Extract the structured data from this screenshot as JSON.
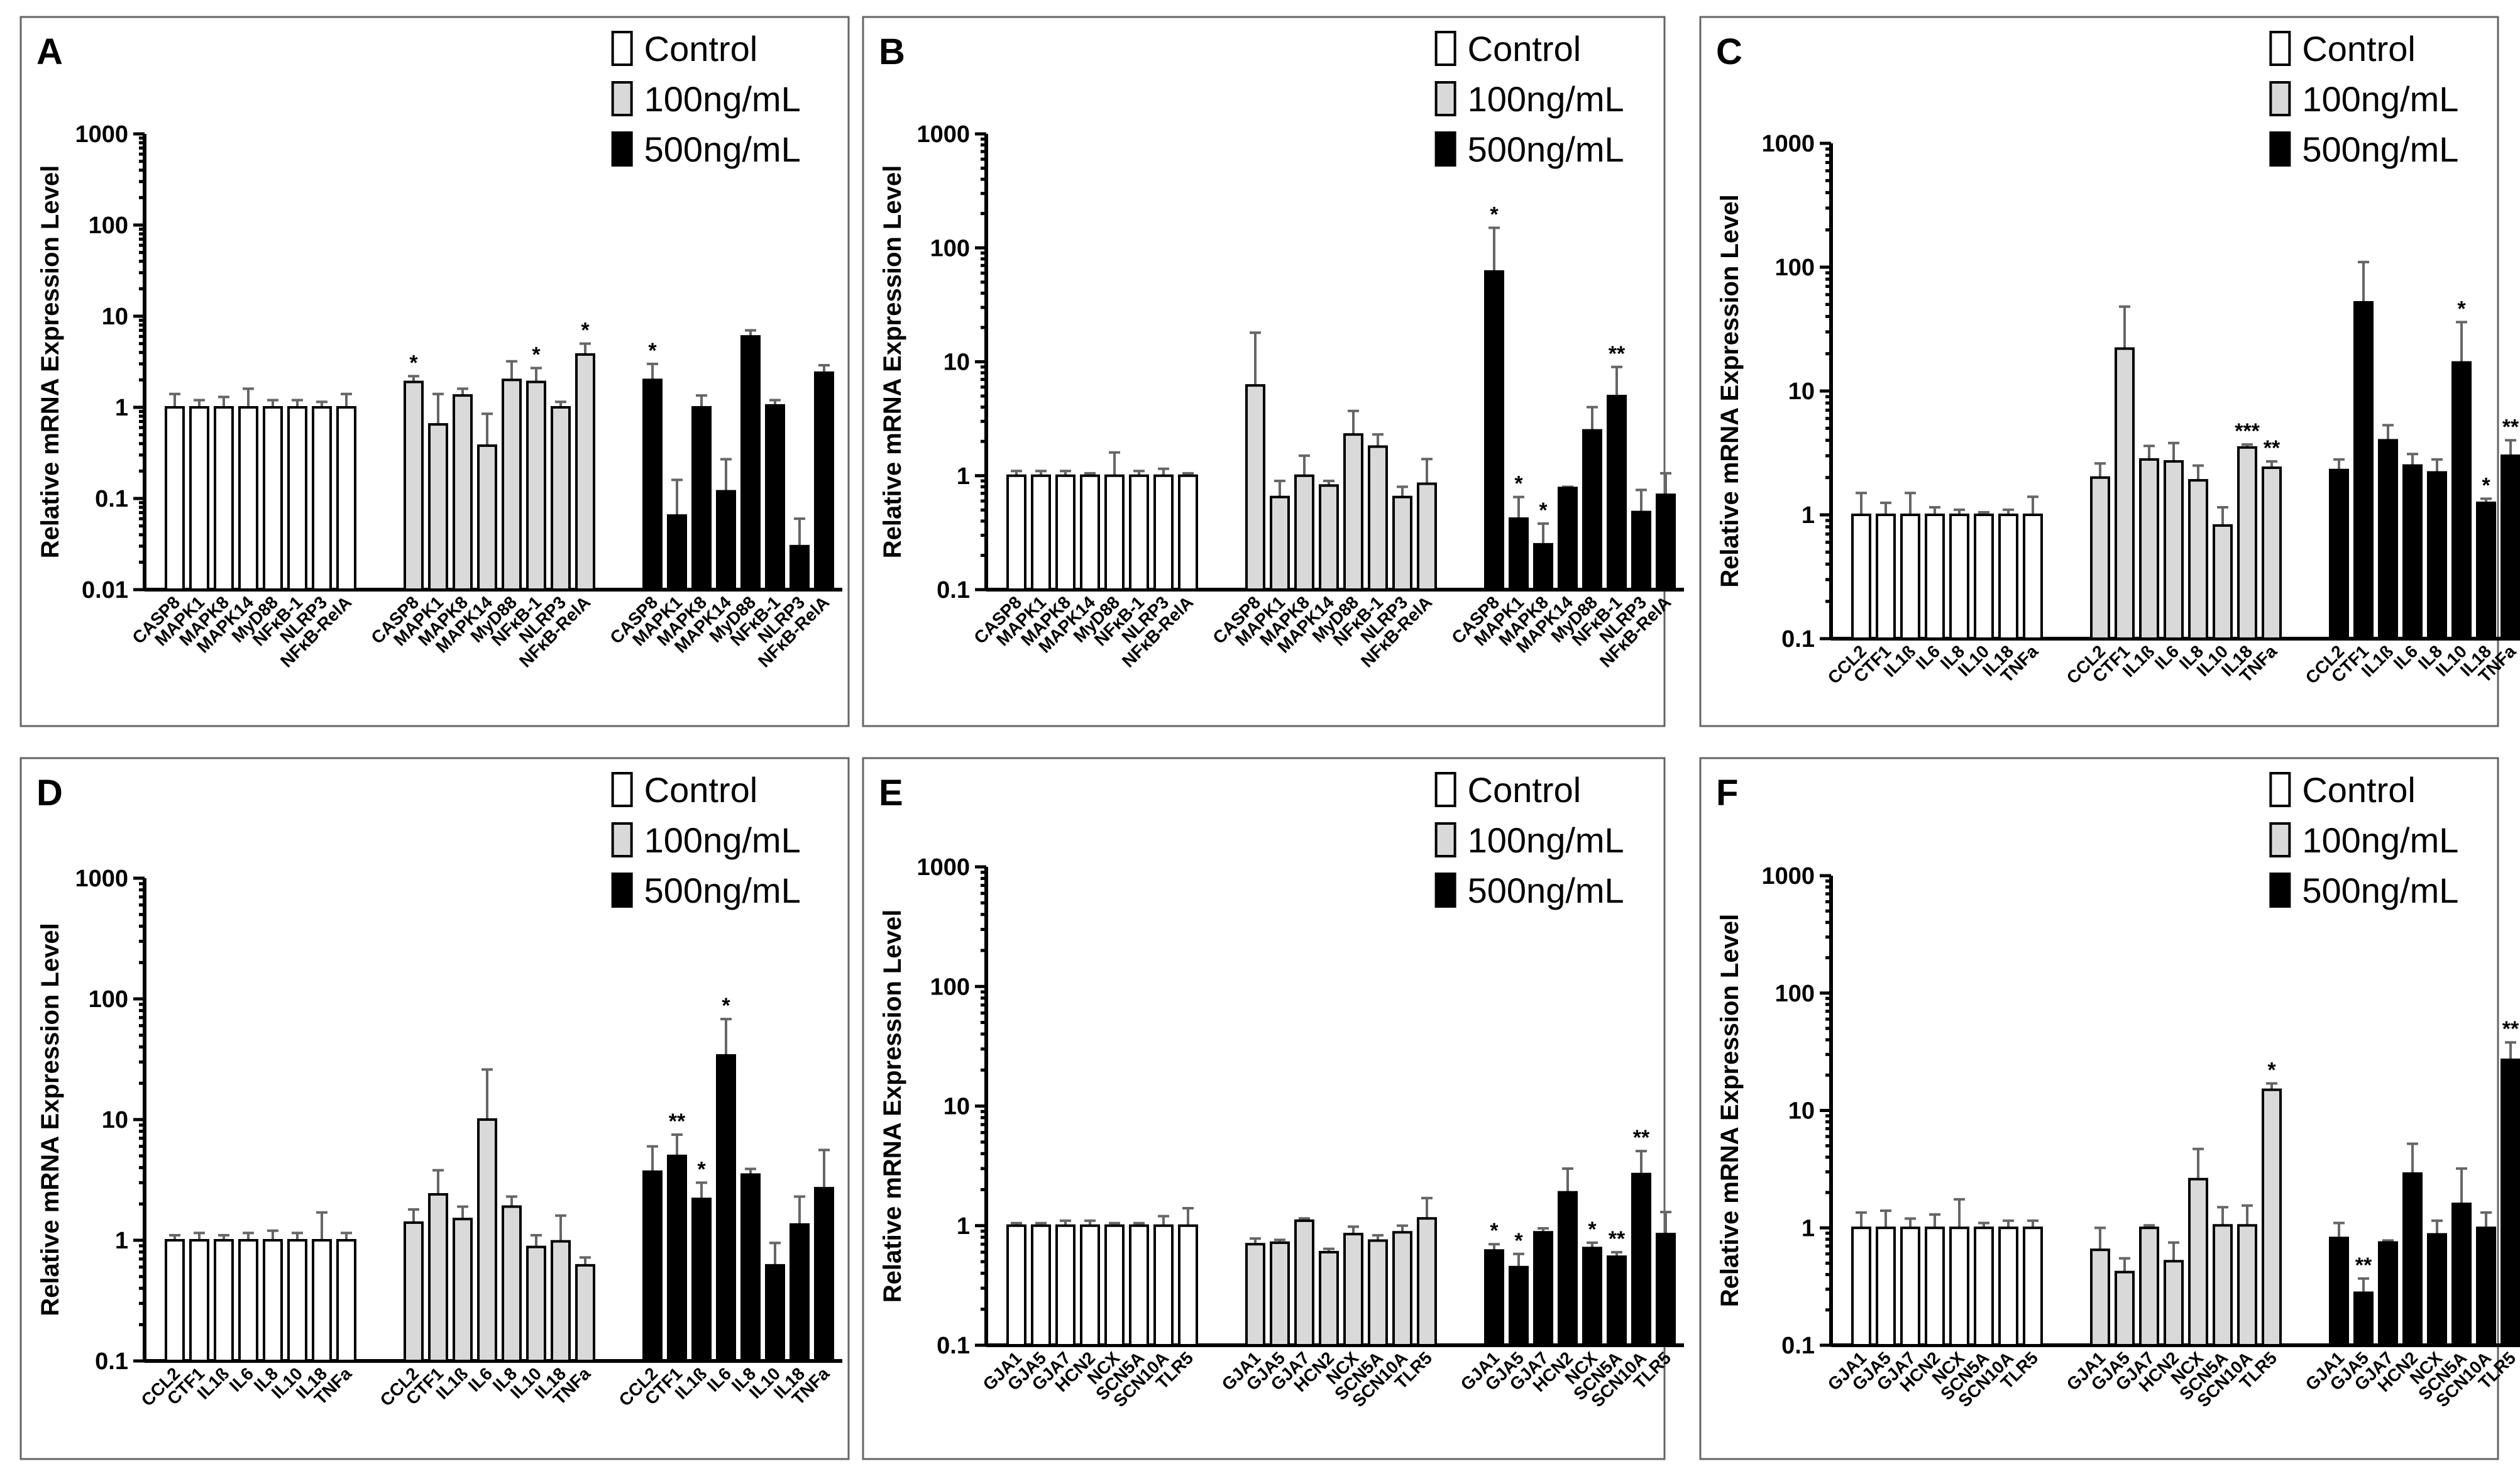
{
  "colors": {
    "Control": "#ffffff",
    "100ng/mL": "#d9d9d9",
    "500ng/mL": "#000000"
  },
  "chart_data": [
    {
      "panel": "A",
      "type": "bar",
      "yscale": "log",
      "ylim": [
        0.01,
        1000
      ],
      "yticks": [
        "0.01",
        "0.1",
        "1",
        "10",
        "100",
        "1000"
      ],
      "ylabel": "Relative mRNA Expression Level",
      "legend": [
        "Control",
        "100ng/mL",
        "500ng/mL"
      ],
      "legend_position": "top-right",
      "groups": [
        {
          "name": "Control",
          "categories": [
            "CASP8",
            "MAPK1",
            "MAPK8",
            "MAPK14",
            "MyD88",
            "NFκB-1",
            "NLRP3",
            "NFκB-RelA"
          ],
          "values": [
            1,
            1,
            1,
            1,
            1,
            1,
            1,
            1
          ],
          "errors": [
            1.4,
            1.2,
            1.3,
            1.6,
            1.2,
            1.2,
            1.15,
            1.4
          ],
          "sig": [
            "",
            "",
            "",
            "",
            "",
            "",
            "",
            ""
          ]
        },
        {
          "name": "100ng/mL",
          "categories": [
            "CASP8",
            "MAPK1",
            "MAPK8",
            "MAPK14",
            "MyD88",
            "NFκB-1",
            "NLRP3",
            "NFκB-RelA"
          ],
          "values": [
            1.9,
            0.65,
            1.35,
            0.38,
            2.0,
            1.9,
            1.0,
            3.8
          ],
          "errors": [
            2.2,
            1.4,
            1.6,
            0.85,
            3.2,
            2.7,
            1.15,
            5.0
          ],
          "sig": [
            "*",
            "",
            "",
            "",
            "",
            "*",
            "",
            "*"
          ]
        },
        {
          "name": "500ng/mL",
          "categories": [
            "CASP8",
            "MAPK1",
            "MAPK8",
            "MAPK14",
            "MyD88",
            "NFκB-1",
            "NLRP3",
            "NFκB-RelA"
          ],
          "values": [
            2.0,
            0.065,
            1.0,
            0.12,
            6.0,
            1.05,
            0.03,
            2.4
          ],
          "errors": [
            3.0,
            0.16,
            1.35,
            0.27,
            7.0,
            1.2,
            0.06,
            2.9
          ],
          "sig": [
            "*",
            "",
            "",
            "",
            "",
            "",
            "",
            ""
          ]
        }
      ]
    },
    {
      "panel": "B",
      "type": "bar",
      "yscale": "log",
      "ylim": [
        0.1,
        1000
      ],
      "yticks": [
        "0.1",
        "1",
        "10",
        "100",
        "1000"
      ],
      "ylabel": "Relative mRNA Expression Level",
      "legend": [
        "Control",
        "100ng/mL",
        "500ng/mL"
      ],
      "legend_position": "top-right",
      "groups": [
        {
          "name": "Control",
          "categories": [
            "CASP8",
            "MAPK1",
            "MAPK8",
            "MAPK14",
            "MyD88",
            "NFκB-1",
            "NLRP3",
            "NFκB-RelA"
          ],
          "values": [
            1,
            1,
            1,
            1,
            1,
            1,
            1,
            1
          ],
          "errors": [
            1.1,
            1.1,
            1.1,
            1.05,
            1.6,
            1.1,
            1.15,
            1.05
          ],
          "sig": [
            "",
            "",
            "",
            "",
            "",
            "",
            "",
            ""
          ]
        },
        {
          "name": "100ng/mL",
          "categories": [
            "CASP8",
            "MAPK1",
            "MAPK8",
            "MAPK14",
            "MyD88",
            "NFκB-1",
            "NLRP3",
            "NFκB-RelA"
          ],
          "values": [
            6.2,
            0.65,
            1.0,
            0.82,
            2.3,
            1.8,
            0.65,
            0.85
          ],
          "errors": [
            18,
            0.9,
            1.5,
            0.9,
            3.7,
            2.3,
            0.8,
            1.4
          ],
          "sig": [
            "",
            "",
            "",
            "",
            "",
            "",
            "",
            ""
          ]
        },
        {
          "name": "500ng/mL",
          "categories": [
            "CASP8",
            "MAPK1",
            "MAPK8",
            "MAPK14",
            "MyD88",
            "NFκB-1",
            "NLRP3",
            "NFκB-RelA"
          ],
          "values": [
            62,
            0.42,
            0.25,
            0.78,
            2.5,
            5.0,
            0.48,
            0.68
          ],
          "errors": [
            150,
            0.65,
            0.38,
            0.8,
            4.0,
            9.0,
            0.75,
            1.05
          ],
          "sig": [
            "*",
            "*",
            "*",
            "",
            "",
            "**",
            "",
            ""
          ]
        }
      ]
    },
    {
      "panel": "C",
      "type": "bar",
      "yscale": "log",
      "ylim": [
        0.1,
        1000
      ],
      "yticks": [
        "0.1",
        "1",
        "10",
        "100",
        "1000"
      ],
      "ylabel": "Relative mRNA Expression Level",
      "legend": [
        "Control",
        "100ng/mL",
        "500ng/mL"
      ],
      "legend_position": "top-right",
      "groups": [
        {
          "name": "Control",
          "categories": [
            "CCL2",
            "CTF1",
            "IL1ß",
            "IL6",
            "IL8",
            "IL10",
            "IL18",
            "TNFa"
          ],
          "values": [
            1,
            1,
            1,
            1,
            1,
            1,
            1,
            1
          ],
          "errors": [
            1.5,
            1.25,
            1.5,
            1.15,
            1.1,
            1.05,
            1.1,
            1.4
          ],
          "sig": [
            "",
            "",
            "",
            "",
            "",
            "",
            "",
            ""
          ]
        },
        {
          "name": "100ng/mL",
          "categories": [
            "CCL2",
            "CTF1",
            "IL1ß",
            "IL6",
            "IL8",
            "IL10",
            "IL18",
            "TNFa"
          ],
          "values": [
            2.0,
            22,
            2.8,
            2.7,
            1.9,
            0.82,
            3.5,
            2.4
          ],
          "errors": [
            2.6,
            48,
            3.6,
            3.8,
            2.5,
            1.15,
            3.7,
            2.7
          ],
          "sig": [
            "",
            "",
            "",
            "",
            "",
            "",
            "***",
            "**"
          ]
        },
        {
          "name": "500ng/mL",
          "categories": [
            "CCL2",
            "CTF1",
            "IL1ß",
            "IL6",
            "IL8",
            "IL10",
            "IL18",
            "TNFa"
          ],
          "values": [
            2.3,
            52,
            4.0,
            2.5,
            2.2,
            17,
            1.25,
            3.0
          ],
          "errors": [
            2.8,
            110,
            5.3,
            3.1,
            2.8,
            36,
            1.35,
            4.0
          ],
          "sig": [
            "",
            "",
            "",
            "",
            "",
            "*",
            "*",
            "**"
          ]
        }
      ]
    },
    {
      "panel": "D",
      "type": "bar",
      "yscale": "log",
      "ylim": [
        0.1,
        1000
      ],
      "yticks": [
        "0.1",
        "1",
        "10",
        "100",
        "1000"
      ],
      "ylabel": "Relative mRNA Expression Level",
      "legend": [
        "Control",
        "100ng/mL",
        "500ng/mL"
      ],
      "legend_position": "top-right",
      "groups": [
        {
          "name": "Control",
          "categories": [
            "CCL2",
            "CTF1",
            "IL1ß",
            "IL6",
            "IL8",
            "IL10",
            "IL18",
            "TNFa"
          ],
          "values": [
            1,
            1,
            1,
            1,
            1,
            1,
            1,
            1
          ],
          "errors": [
            1.1,
            1.15,
            1.1,
            1.15,
            1.2,
            1.15,
            1.7,
            1.15
          ],
          "sig": [
            "",
            "",
            "",
            "",
            "",
            "",
            "",
            ""
          ]
        },
        {
          "name": "100ng/mL",
          "categories": [
            "CCL2",
            "CTF1",
            "IL1ß",
            "IL6",
            "IL8",
            "IL10",
            "IL18",
            "TNFa"
          ],
          "values": [
            1.4,
            2.4,
            1.5,
            10,
            1.9,
            0.88,
            0.98,
            0.62
          ],
          "errors": [
            1.8,
            3.8,
            1.9,
            26,
            2.3,
            1.1,
            1.6,
            0.72
          ],
          "sig": [
            "",
            "",
            "",
            "",
            "",
            "",
            "",
            ""
          ]
        },
        {
          "name": "500ng/mL",
          "categories": [
            "CCL2",
            "CTF1",
            "IL1ß",
            "IL6",
            "IL8",
            "IL10",
            "IL18",
            "TNFa"
          ],
          "values": [
            3.7,
            5.0,
            2.2,
            34,
            3.5,
            0.62,
            1.35,
            2.7
          ],
          "errors": [
            6.0,
            7.5,
            3.0,
            68,
            3.9,
            0.95,
            2.3,
            5.6
          ],
          "sig": [
            "",
            "**",
            "*",
            "*",
            "",
            "",
            "",
            ""
          ]
        }
      ]
    },
    {
      "panel": "E",
      "type": "bar",
      "yscale": "log",
      "ylim": [
        0.1,
        1000
      ],
      "yticks": [
        "0.1",
        "1",
        "10",
        "100",
        "1000"
      ],
      "ylabel": "Relative mRNA Expression Level",
      "legend": [
        "Control",
        "100ng/mL",
        "500ng/mL"
      ],
      "legend_position": "top-right",
      "groups": [
        {
          "name": "Control",
          "categories": [
            "GJA1",
            "GJA5",
            "GJA7",
            "HCN2",
            "NCX",
            "SCN5A",
            "SCN10A",
            "TLR5"
          ],
          "values": [
            1,
            1,
            1,
            1,
            1,
            1,
            1,
            1
          ],
          "errors": [
            1.05,
            1.05,
            1.1,
            1.1,
            1.05,
            1.05,
            1.2,
            1.4
          ],
          "sig": [
            "",
            "",
            "",
            "",
            "",
            "",
            "",
            ""
          ]
        },
        {
          "name": "100ng/mL",
          "categories": [
            "GJA1",
            "GJA5",
            "GJA7",
            "HCN2",
            "NCX",
            "SCN5A",
            "SCN10A",
            "TLR5"
          ],
          "values": [
            0.7,
            0.72,
            1.1,
            0.6,
            0.85,
            0.75,
            0.88,
            1.15
          ],
          "errors": [
            0.78,
            0.76,
            1.15,
            0.64,
            0.98,
            0.83,
            1.0,
            1.7
          ],
          "sig": [
            "",
            "",
            "",
            "",
            "",
            "",
            "",
            ""
          ]
        },
        {
          "name": "500ng/mL",
          "categories": [
            "GJA1",
            "GJA5",
            "GJA7",
            "HCN2",
            "NCX",
            "SCN5A",
            "SCN10A",
            "TLR5"
          ],
          "values": [
            0.62,
            0.45,
            0.88,
            1.9,
            0.65,
            0.55,
            2.7,
            0.85
          ],
          "errors": [
            0.7,
            0.58,
            0.95,
            3.0,
            0.72,
            0.6,
            4.2,
            1.3
          ],
          "sig": [
            "*",
            "*",
            "",
            "",
            "*",
            "**",
            "**",
            ""
          ]
        }
      ]
    },
    {
      "panel": "F",
      "type": "bar",
      "yscale": "log",
      "ylim": [
        0.1,
        1000
      ],
      "yticks": [
        "0.1",
        "1",
        "10",
        "100",
        "1000"
      ],
      "ylabel": "Relative mRNA Expression Level",
      "legend": [
        "Control",
        "100ng/mL",
        "500ng/mL"
      ],
      "legend_position": "top-right",
      "groups": [
        {
          "name": "Control",
          "categories": [
            "GJA1",
            "GJA5",
            "GJA7",
            "HCN2",
            "NCX",
            "SCN5A",
            "SCN10A",
            "TLR5"
          ],
          "values": [
            1,
            1,
            1,
            1,
            1,
            1,
            1,
            1
          ],
          "errors": [
            1.35,
            1.4,
            1.2,
            1.3,
            1.75,
            1.1,
            1.15,
            1.15
          ],
          "sig": [
            "",
            "",
            "",
            "",
            "",
            "",
            "",
            ""
          ]
        },
        {
          "name": "100ng/mL",
          "categories": [
            "GJA1",
            "GJA5",
            "GJA7",
            "HCN2",
            "NCX",
            "SCN5A",
            "SCN10A",
            "TLR5"
          ],
          "values": [
            0.65,
            0.42,
            1.0,
            0.52,
            2.6,
            1.05,
            1.05,
            15
          ],
          "errors": [
            1.0,
            0.55,
            1.05,
            0.75,
            4.7,
            1.5,
            1.55,
            17
          ],
          "sig": [
            "",
            "",
            "",
            "",
            "",
            "",
            "",
            "*"
          ]
        },
        {
          "name": "500ng/mL",
          "categories": [
            "GJA1",
            "GJA5",
            "GJA7",
            "HCN2",
            "NCX",
            "SCN5A",
            "SCN10A",
            "TLR5"
          ],
          "values": [
            0.82,
            0.28,
            0.75,
            2.9,
            0.88,
            1.6,
            1.0,
            27
          ],
          "errors": [
            1.1,
            0.37,
            0.78,
            5.2,
            1.15,
            3.2,
            1.35,
            38
          ],
          "sig": [
            "",
            "**",
            "",
            "",
            "",
            "",
            "",
            "**"
          ]
        }
      ]
    }
  ]
}
